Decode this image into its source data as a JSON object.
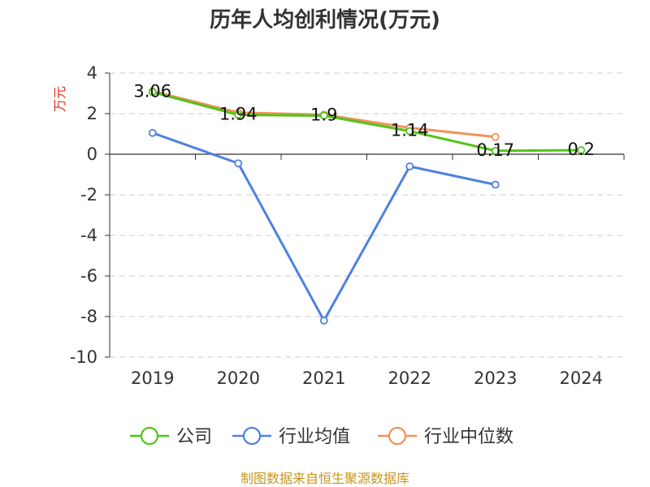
{
  "chart_data": {
    "type": "line",
    "title": "历年人均创利情况(万元)",
    "ylabel": "万元",
    "xlabel": "",
    "categories": [
      "2019",
      "2020",
      "2021",
      "2022",
      "2023",
      "2024"
    ],
    "ylim": [
      -10,
      4
    ],
    "yticks": [
      4,
      2,
      0,
      -2,
      -4,
      -6,
      -8,
      -10
    ],
    "grid": true,
    "legend_position": "bottom",
    "series": [
      {
        "name": "公司",
        "color": "#52c41a",
        "values": [
          3.06,
          1.94,
          1.9,
          1.14,
          0.17,
          0.2
        ],
        "labels": [
          "3.06",
          "1.94",
          "1.9",
          "1.14",
          "0.17",
          "0.2"
        ]
      },
      {
        "name": "行业均值",
        "color": "#4f81e0",
        "values": [
          1.05,
          -0.45,
          -8.2,
          -0.6,
          -1.5,
          null
        ]
      },
      {
        "name": "行业中位数",
        "color": "#f2915a",
        "values": [
          3.1,
          2.05,
          1.95,
          1.3,
          0.85,
          null
        ]
      }
    ]
  },
  "source": "制图数据来自恒生聚源数据库"
}
